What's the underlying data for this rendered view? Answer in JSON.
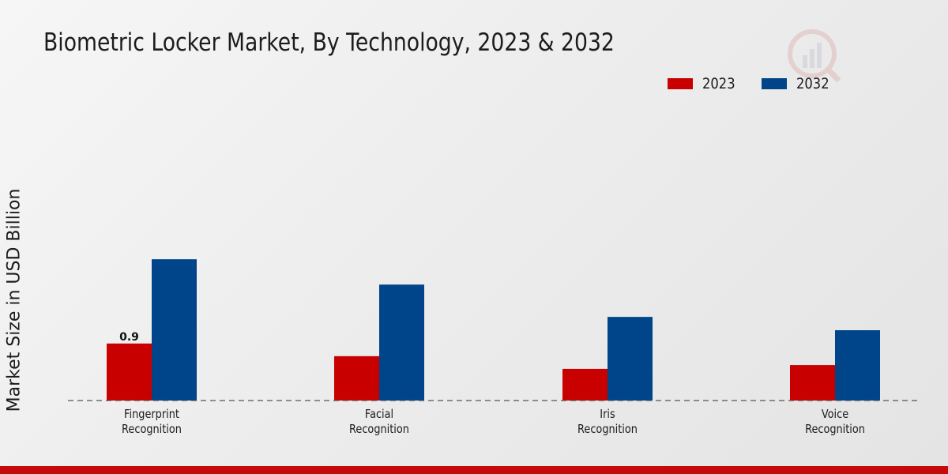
{
  "header": {
    "title": "Biometric Locker Market, By Technology, 2023 & 2032"
  },
  "legend": [
    {
      "label": "2023",
      "color": "#c80000"
    },
    {
      "label": "2032",
      "color": "#00448a"
    }
  ],
  "chart_data": {
    "type": "bar",
    "title": "Biometric Locker Market, By Technology, 2023 & 2032",
    "xlabel": "",
    "ylabel": "Market Size in USD Billion",
    "categories": [
      [
        "Fingerprint",
        "Recognition"
      ],
      [
        "Facial",
        "Recognition"
      ],
      [
        "Iris",
        "Recognition"
      ],
      [
        "Voice",
        "Recognition"
      ]
    ],
    "series": [
      {
        "name": "2023",
        "color": "#c80000",
        "values": [
          0.9,
          0.7,
          0.5,
          0.56
        ]
      },
      {
        "name": "2032",
        "color": "#00448a",
        "values": [
          2.23,
          1.83,
          1.32,
          1.11
        ]
      }
    ],
    "data_labels": [
      {
        "series": 0,
        "index": 0,
        "text": "0.9"
      }
    ],
    "ylim": [
      0,
      5.2
    ],
    "grid": false,
    "legend_position": "top-right"
  }
}
